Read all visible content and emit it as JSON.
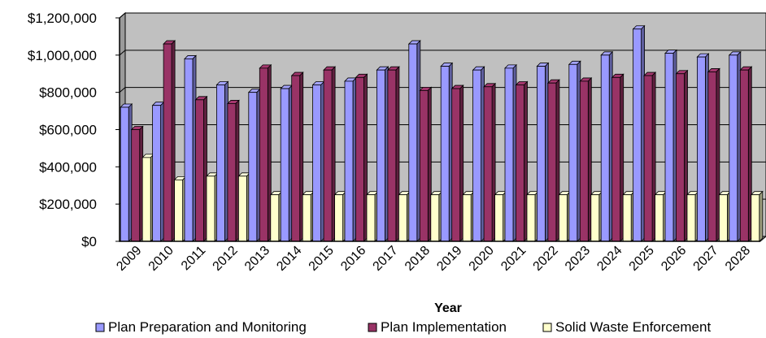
{
  "chart_data": {
    "type": "bar",
    "title": "",
    "xlabel": "Year",
    "ylabel": "",
    "ylim": [
      0,
      1200000
    ],
    "y_ticks": [
      0,
      200000,
      400000,
      600000,
      800000,
      1000000,
      1200000
    ],
    "y_tick_labels": [
      "$0",
      "$200,000",
      "$400,000",
      "$600,000",
      "$800,000",
      "$1,000,000",
      "$1,200,000"
    ],
    "grid": true,
    "legend_position": "bottom",
    "style": "3d-clustered-bar",
    "categories": [
      "2009",
      "2010",
      "2011",
      "2012",
      "2013",
      "2014",
      "2015",
      "2016",
      "2017",
      "2018",
      "2019",
      "2020",
      "2021",
      "2022",
      "2023",
      "2024",
      "2025",
      "2026",
      "2027",
      "2028"
    ],
    "series": [
      {
        "name": "Plan Preparation and Monitoring",
        "color": "#9999ff",
        "values": [
          720000,
          730000,
          980000,
          840000,
          800000,
          820000,
          840000,
          860000,
          920000,
          1060000,
          940000,
          920000,
          930000,
          940000,
          950000,
          1000000,
          1140000,
          1010000,
          990000,
          1000000
        ]
      },
      {
        "name": "Plan Implementation",
        "color": "#993366",
        "values": [
          600000,
          1060000,
          760000,
          740000,
          930000,
          890000,
          920000,
          880000,
          920000,
          810000,
          820000,
          830000,
          840000,
          850000,
          860000,
          880000,
          890000,
          900000,
          910000,
          920000
        ]
      },
      {
        "name": "Solid Waste Enforcement",
        "color": "#ffffcc",
        "values": [
          450000,
          330000,
          350000,
          350000,
          250000,
          250000,
          250000,
          250000,
          250000,
          250000,
          250000,
          250000,
          250000,
          250000,
          250000,
          250000,
          250000,
          250000,
          250000,
          250000
        ]
      }
    ]
  },
  "colors": {
    "plot_background": "#c0c0c0",
    "wall_side": "#9a9a9a",
    "floor": "#808080",
    "gridline": "#000000"
  }
}
